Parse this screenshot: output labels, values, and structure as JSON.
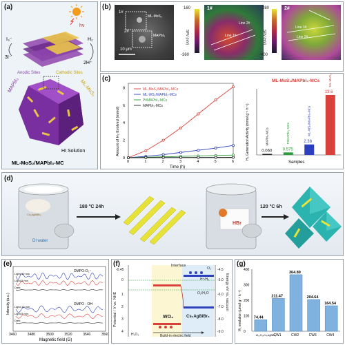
{
  "panel_labels": {
    "a": "(a)",
    "b": "(b)",
    "c": "(c)",
    "d": "(d)",
    "e": "(e)",
    "f": "(f)",
    "g": "(g)"
  },
  "panel_a": {
    "hv": "hν",
    "i3": "I₃⁻",
    "three_i": "3I⁻",
    "h2": "H₂",
    "two_h": "2H⁺",
    "anodic": "Anodic Sites",
    "cathodic": "Cathodic Sites",
    "mapbi3": "MAPbI₃",
    "mlmos2": "ML-MoS₂",
    "hi": "HI Solution",
    "caption": "ML-MoS₂/MAPbI₃-MC"
  },
  "panel_b": {
    "sem_tag1": "1#",
    "sem_tag2": "2#",
    "sem_mos2": "ML-MoS₂",
    "sem_mapbi3": "MAPbI₃",
    "scale": "10 μm",
    "cb1_top": "160",
    "cb1_bot": "-360",
    "cb1_label": "SPV (mV)",
    "map1_tag": "1#",
    "map1_l1": "Line 1#",
    "map1_l2": "Line 2#",
    "cb2_top": "280",
    "cb2_bot": "-400",
    "cb2_label": "SPV (mV)",
    "map2_tag": "2#",
    "map2_l1": "Line 1#",
    "map2_l2": "Line 2#"
  },
  "panel_c_line": {
    "ylabel": "Amount of H₂ Evolved (mmol)",
    "xlabel": "Time (h)",
    "xticks": [
      "0",
      "1",
      "2",
      "3",
      "4",
      "5",
      "6"
    ],
    "yticks": [
      "0",
      "2",
      "4",
      "6",
      "8"
    ],
    "series": [
      {
        "name": "ML-MoS₂/MAPbI₃-MCs",
        "color": "#d9423a",
        "values": [
          0,
          0.8,
          2.0,
          3.4,
          5.0,
          6.6,
          8.1
        ]
      },
      {
        "name": "ML-WS₂/MAPbI₃-MCs",
        "color": "#2b3fbf",
        "values": [
          0,
          0.15,
          0.35,
          0.6,
          0.85,
          1.1,
          1.4
        ]
      },
      {
        "name": "Pt/MAPbI₃-MCs",
        "color": "#2e9c3a",
        "values": [
          0,
          0.05,
          0.1,
          0.15,
          0.2,
          0.25,
          0.3
        ]
      },
      {
        "name": "MAPbI₃-MCs",
        "color": "#222222",
        "values": [
          0,
          0.01,
          0.02,
          0.02,
          0.03,
          0.03,
          0.04
        ]
      }
    ]
  },
  "panel_c_bar": {
    "title": "ML-MoS₂/MAPbI₃-MCs",
    "ylabel": "H₂ Generation Activity (mmol g⁻¹ h⁻¹)",
    "xlabel": "Samples",
    "categories": [
      "MAPbI₃-MCs",
      "Pt/MAPbI₃-MCs",
      "ML-WS₂/MAPbI₃-MCs",
      "ML-MoS₂/MAPbI₃-MCs"
    ],
    "values": [
      0.06,
      0.575,
      2.38,
      13.6
    ],
    "labels": [
      "0.060",
      "0.575",
      "2.38",
      "13.6"
    ],
    "colors": [
      "#222222",
      "#2e9c3a",
      "#2b3fbf",
      "#d9423a"
    ]
  },
  "panel_d": {
    "temp1": "180 °C 24h",
    "temp2": "120 °C 6h",
    "di": "DI water",
    "hbr": "HBr",
    "powder": "Cs₂AgBiBr₆"
  },
  "panel_e": {
    "xlabel": "Magnetic field (G)",
    "ylabel": "Intensity (a.u.)",
    "xticks": [
      "3460",
      "3480",
      "3500",
      "3520",
      "3540",
      "3560"
    ],
    "top_title": "DMPO-O₂⁻",
    "bot_title": "DMPO - OH",
    "top_traces": [
      "Light-10 min",
      "Light-5 min",
      "Dark"
    ],
    "bot_traces": [
      "Light-10 min",
      "Light-5 min",
      "Dark"
    ]
  },
  "panel_f": {
    "ylabel_left": "Potential / V vs. NHE",
    "ylabel_right": "Energy eV vs. vacuum",
    "left_ticks": [
      "-0.45",
      "0",
      "1",
      "2",
      "3",
      "4"
    ],
    "right_ticks": [
      "-4.5",
      "-5.0",
      "-6.0",
      "-7.0",
      "-8.0",
      "-9.0"
    ],
    "interface": "Interface",
    "wo3": "WO₃",
    "cs": "Cs₂AgBiBr₆",
    "h2o2": "H₂O₂",
    "field": "Build-in electric field",
    "o2": "O₂",
    "h_h2": "H⁺/H₂",
    "o2_h2o": "O₂/H₂O"
  },
  "panel_g": {
    "ylabel": "H₂ evolution (μmol g⁻¹ h⁻¹)",
    "categories": [
      "W₁₈O₄₉Cs₂AgBiBr₆",
      "CW1",
      "CW2",
      "CW3",
      "CW4"
    ],
    "values": [
      74.44,
      211.47,
      364.89,
      204.64,
      164.54
    ],
    "labels": [
      "74.44",
      "211.47",
      "364.89",
      "204.64",
      "164.54"
    ],
    "yticks": [
      "0",
      "100",
      "200",
      "300",
      "400"
    ]
  }
}
